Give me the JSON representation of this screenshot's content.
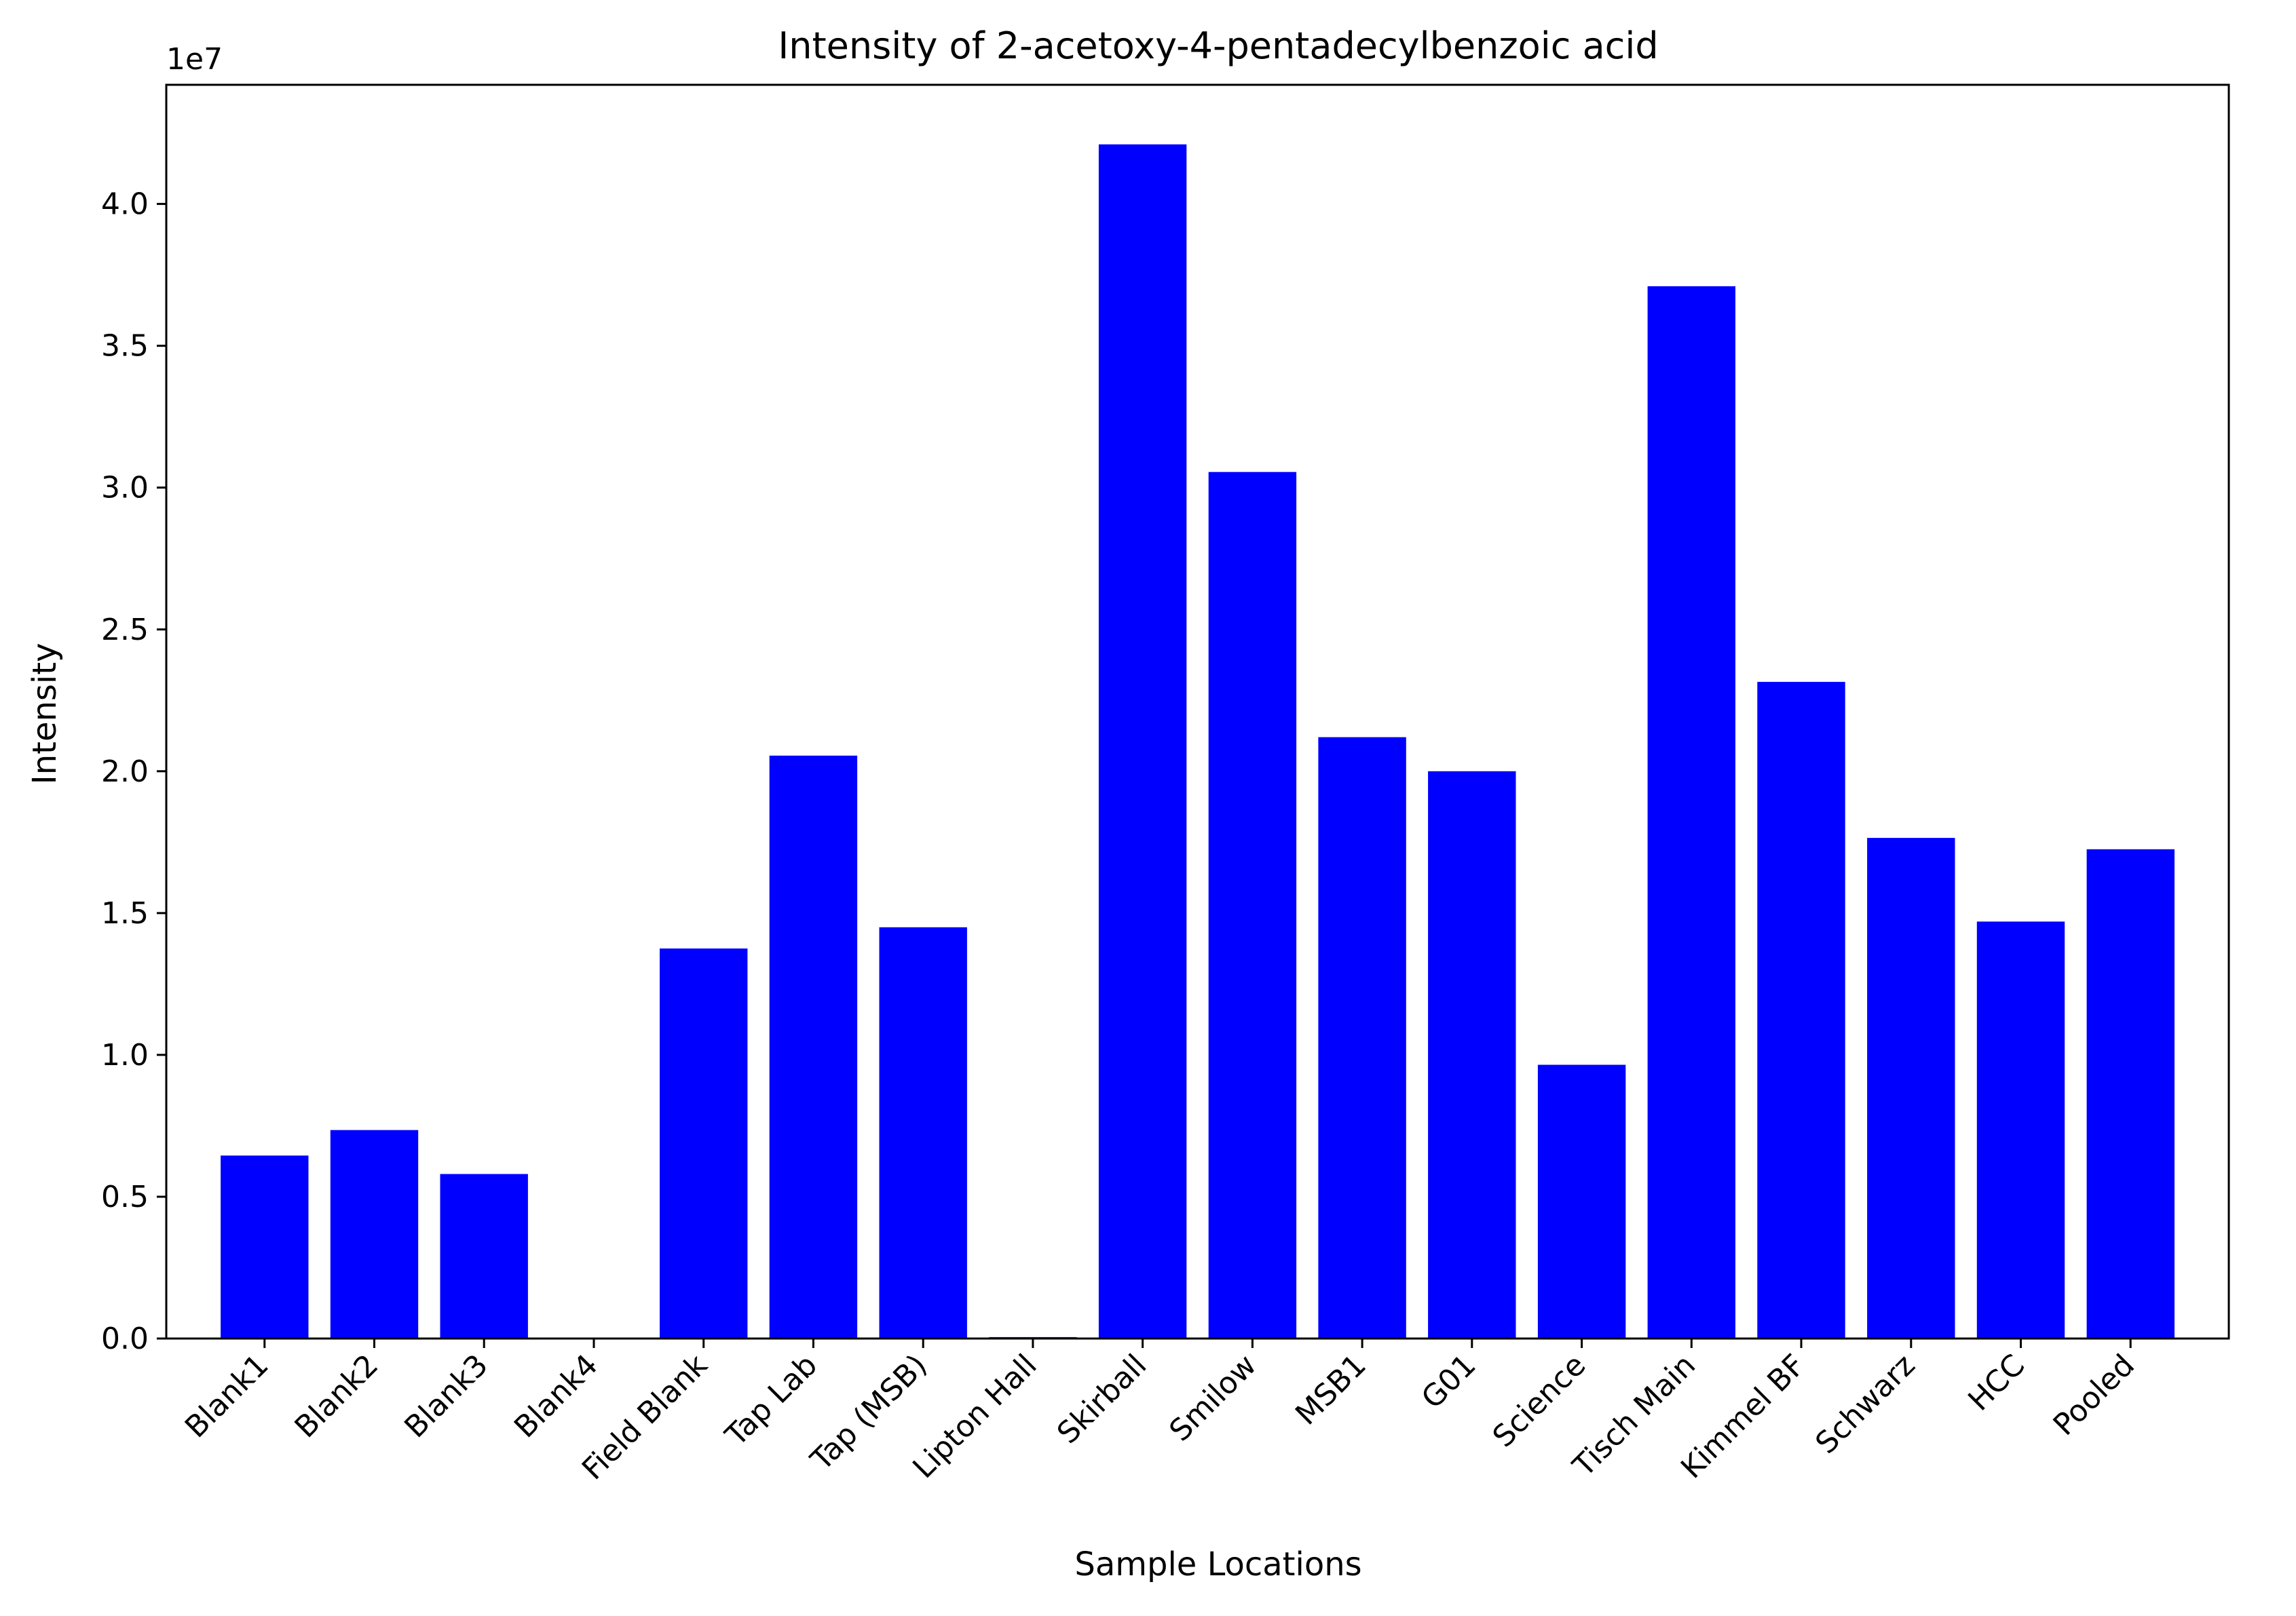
{
  "chart_data": {
    "type": "bar",
    "title": "Intensity of 2-acetoxy-4-pentadecylbenzoic acid",
    "xlabel": "Sample Locations",
    "ylabel": "Intensity",
    "y_offset_label": "1e7",
    "y_scale_factor": 10000000,
    "ylim": [
      0,
      44200000
    ],
    "yticks": [
      0,
      5000000,
      10000000,
      15000000,
      20000000,
      25000000,
      30000000,
      35000000,
      40000000
    ],
    "ytick_labels": [
      "0.0",
      "0.5",
      "1.0",
      "1.5",
      "2.0",
      "2.5",
      "3.0",
      "3.5",
      "4.0"
    ],
    "bar_color": "#0000ff",
    "grid": false,
    "categories": [
      "Blank1",
      "Blank2",
      "Blank3",
      "Blank4",
      "Field Blank",
      "Tap Lab",
      "Tap (MSB)",
      "Lipton Hall",
      "Skirball",
      "Smilow",
      "MSB1",
      "G01",
      "Science",
      "Tisch Main",
      "Kimmel BF",
      "Schwarz",
      "HCC",
      "Pooled"
    ],
    "values": [
      6450000,
      7350000,
      5800000,
      0,
      13750000,
      20550000,
      14500000,
      50000,
      42100000,
      30550000,
      21200000,
      20000000,
      9650000,
      37100000,
      23150000,
      17650000,
      14700000,
      17250000
    ]
  }
}
